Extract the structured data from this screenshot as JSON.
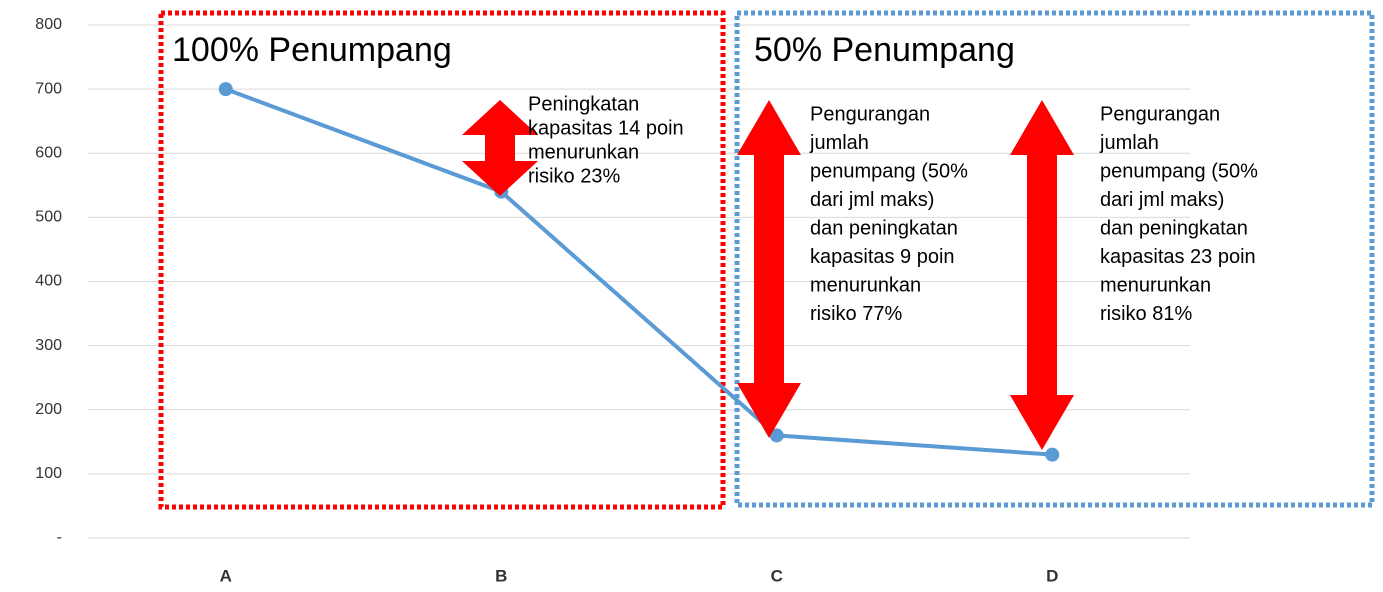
{
  "chart_data": {
    "type": "line",
    "categories": [
      "A",
      "B",
      "C",
      "D"
    ],
    "series": [
      {
        "name": null,
        "color": "#5b9bd5",
        "values": [
          700,
          540,
          160,
          130
        ]
      }
    ],
    "ylim": [
      0,
      800
    ],
    "yticks": [
      {
        "value": 0,
        "label": "-"
      },
      100,
      200,
      300,
      400,
      500,
      600,
      700,
      800
    ],
    "grid": true,
    "annotations": [
      {
        "text": "100% Penumpang"
      },
      {
        "text": "50% Penumpang"
      },
      {
        "lines": [
          "Peningkatan",
          "kapasitas 14 poin",
          "menurunkan",
          "risiko 23%"
        ]
      },
      {
        "lines": [
          "Pengurangan",
          "jumlah",
          "penumpang (50%",
          "dari jml maks)",
          "dan peningkatan",
          "kapasitas 9 poin",
          "menurunkan",
          "risiko 77%"
        ]
      },
      {
        "lines": [
          "Pengurangan",
          "jumlah",
          "penumpang (50%",
          "dari jml maks)",
          "dan peningkatan",
          "kapasitas 23 poin",
          "menurunkan",
          "risiko 81%"
        ]
      }
    ]
  }
}
